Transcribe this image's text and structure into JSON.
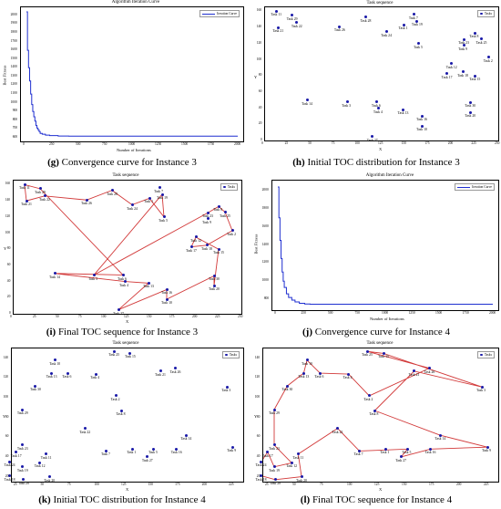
{
  "panels": [
    {
      "id": "g",
      "kind": "curve",
      "title": "Algorithm Iteration Curve",
      "legend": "Iteration Curve",
      "xlabel": "Number of Iterations",
      "ylabel": "Best Fitness",
      "caption_letter": "(g)",
      "caption_text": " Convergence curve for Instance 3",
      "x_ticks": [
        "0",
        "250",
        "500",
        "750",
        "1000",
        "1250",
        "1500",
        "1750",
        "2000"
      ],
      "y_ticks": [
        "600",
        "700",
        "800",
        "900",
        "1000",
        "1100",
        "1200",
        "1300",
        "1400",
        "1500",
        "1600",
        "1700",
        "1800",
        "1900",
        "2000"
      ]
    },
    {
      "id": "h",
      "kind": "scatter",
      "title": "Task sequence",
      "legend": "Tasks",
      "xlabel": "X",
      "ylabel": "Y",
      "caption_letter": "(h)",
      "caption_text": " Initial TOC distribution for Instance 3",
      "x_ticks": [
        "0",
        "25",
        "50",
        "75",
        "100",
        "125",
        "150",
        "175",
        "200",
        "225",
        "250"
      ],
      "y_ticks": [
        "0",
        "20",
        "40",
        "60",
        "80",
        "100",
        "120",
        "140",
        "160"
      ]
    },
    {
      "id": "i",
      "kind": "route",
      "title": "Task sequence",
      "legend": "Tasks",
      "xlabel": "X",
      "ylabel": "Y",
      "caption_letter": "(i)",
      "caption_text": " Final TOC sequence for Instance 3",
      "x_ticks": [
        "0",
        "25",
        "50",
        "75",
        "100",
        "125",
        "150",
        "175",
        "200",
        "225",
        "250"
      ],
      "y_ticks": [
        "0",
        "20",
        "40",
        "60",
        "80",
        "100",
        "120",
        "140",
        "160"
      ]
    },
    {
      "id": "j",
      "kind": "curve",
      "title": "Algorithm Iteration Curve",
      "legend": "Iteration Curve",
      "xlabel": "Number of Iterations",
      "ylabel": "Best Fitness",
      "caption_letter": "(j)",
      "caption_text": " Convergence curve for Instance 4",
      "x_ticks": [
        "0",
        "250",
        "500",
        "750",
        "1000",
        "1250",
        "1500",
        "1750",
        "2000"
      ],
      "y_ticks": [
        "800",
        "1000",
        "1200",
        "1400",
        "1600",
        "1800",
        "2000"
      ]
    },
    {
      "id": "k",
      "kind": "scatter",
      "title": "Task sequence",
      "legend": "Tasks",
      "xlabel": "X",
      "ylabel": "Y",
      "caption_letter": "(k)",
      "caption_text": " Initial TOC distribution for Instance 4",
      "x_ticks": [
        "25",
        "50",
        "75",
        "100",
        "125",
        "150",
        "175",
        "200",
        "225"
      ],
      "y_ticks": [
        "20",
        "40",
        "60",
        "80",
        "100",
        "120",
        "140"
      ]
    },
    {
      "id": "l",
      "kind": "route",
      "title": "Task sequence",
      "legend": "Tasks",
      "xlabel": "X",
      "ylabel": "Y",
      "caption_letter": "(l)",
      "caption_text": " Final TOC sequence for Instance 4",
      "x_ticks": [
        "25",
        "50",
        "75",
        "100",
        "125",
        "150",
        "175",
        "200",
        "225"
      ],
      "y_ticks": [
        "20",
        "40",
        "60",
        "80",
        "100",
        "120",
        "140"
      ]
    }
  ],
  "chart_data": [
    {
      "panel": "g",
      "type": "line",
      "title": "Algorithm Iteration Curve",
      "xlabel": "Number of Iterations",
      "ylabel": "Best Fitness",
      "xlim": [
        0,
        2000
      ],
      "ylim": [
        600,
        2050
      ],
      "series": [
        {
          "name": "Iteration Curve",
          "x": [
            0,
            10,
            20,
            30,
            40,
            50,
            60,
            70,
            80,
            90,
            100,
            110,
            120,
            130,
            150,
            180,
            220,
            300,
            400,
            2000
          ],
          "y": [
            2040,
            1600,
            1400,
            1250,
            1100,
            980,
            900,
            840,
            790,
            740,
            710,
            690,
            670,
            650,
            640,
            630,
            625,
            620,
            618,
            618
          ]
        }
      ]
    },
    {
      "panel": "h",
      "type": "scatter",
      "title": "Task sequence",
      "xlim": [
        0,
        250
      ],
      "ylim": [
        0,
        165
      ],
      "series": [
        {
          "name": "Tasks",
          "points": [
            {
              "label": "Task 1",
              "x": 149,
              "y": 143
            },
            {
              "label": "Task 2",
              "x": 240,
              "y": 103
            },
            {
              "label": "Task 3",
              "x": 88,
              "y": 48
            },
            {
              "label": "Task 4",
              "x": 122,
              "y": 40
            },
            {
              "label": "Task 5",
              "x": 165,
              "y": 120
            },
            {
              "label": "Task 6",
              "x": 120,
              "y": 48
            },
            {
              "label": "Task 7",
              "x": 160,
              "y": 156
            },
            {
              "label": "Task 8",
              "x": 225,
              "y": 133
            },
            {
              "label": "Task 9",
              "x": 213,
              "y": 118
            },
            {
              "label": "Task 10",
              "x": 168,
              "y": 18
            },
            {
              "label": "Task 11",
              "x": 12,
              "y": 160
            },
            {
              "label": "Task 12",
              "x": 200,
              "y": 95
            },
            {
              "label": "Task 13",
              "x": 148,
              "y": 38
            },
            {
              "label": "Task 14",
              "x": 45,
              "y": 50
            },
            {
              "label": "Task 15",
              "x": 225,
              "y": 80
            },
            {
              "label": "Task 16",
              "x": 168,
              "y": 30
            },
            {
              "label": "Task 17",
              "x": 195,
              "y": 83
            },
            {
              "label": "Task 18",
              "x": 212,
              "y": 85
            },
            {
              "label": "Task 19",
              "x": 163,
              "y": 148
            },
            {
              "label": "Task 20",
              "x": 220,
              "y": 35
            },
            {
              "label": "Task 21",
              "x": 14,
              "y": 140
            },
            {
              "label": "Task 22",
              "x": 34,
              "y": 146
            },
            {
              "label": "Task 23",
              "x": 213,
              "y": 125
            },
            {
              "label": "Task 24",
              "x": 130,
              "y": 135
            },
            {
              "label": "Task 25",
              "x": 232,
              "y": 126
            },
            {
              "label": "Task 26",
              "x": 80,
              "y": 141
            },
            {
              "label": "Task 27",
              "x": 115,
              "y": 5
            },
            {
              "label": "Task 28",
              "x": 108,
              "y": 153
            },
            {
              "label": "Task 29",
              "x": 29,
              "y": 155
            },
            {
              "label": "Task 30",
              "x": 220,
              "y": 47
            }
          ]
        }
      ]
    },
    {
      "panel": "i",
      "type": "line",
      "title": "Task sequence",
      "xlim": [
        0,
        250
      ],
      "ylim": [
        0,
        165
      ],
      "route": [
        "Task 11",
        "Task 21",
        "Task 22",
        "Task 26",
        "Task 28",
        "Task 24",
        "Task 1",
        "Task 5",
        "Task 19",
        "Task 3",
        "Task 23",
        "Task 8",
        "Task 25",
        "Task 2",
        "Task 18",
        "Task 17",
        "Task 12",
        "Task 15",
        "Task 20",
        "Task 30",
        "Task 10",
        "Task 16",
        "Task 27",
        "Task 13",
        "Task 4",
        "Task 14",
        "Task 6",
        "Task 29",
        "Task 11"
      ]
    },
    {
      "panel": "j",
      "type": "line",
      "title": "Algorithm Iteration Curve",
      "xlabel": "Number of Iterations",
      "ylabel": "Best Fitness",
      "xlim": [
        0,
        2000
      ],
      "ylim": [
        720,
        2070
      ],
      "series": [
        {
          "name": "Iteration Curve",
          "x": [
            0,
            10,
            20,
            30,
            40,
            50,
            60,
            80,
            100,
            130,
            160,
            200,
            250,
            300,
            2000
          ],
          "y": [
            2040,
            1700,
            1450,
            1250,
            1100,
            1000,
            930,
            860,
            820,
            790,
            770,
            755,
            748,
            745,
            745
          ]
        }
      ]
    },
    {
      "panel": "k",
      "type": "scatter",
      "title": "Task sequence",
      "xlim": [
        20,
        235
      ],
      "ylim": [
        15,
        150
      ],
      "series": [
        {
          "name": "Tasks",
          "points": [
            {
              "label": "Task 1",
              "x": 132,
              "y": 48
            },
            {
              "label": "Task 2",
              "x": 117,
              "y": 102
            },
            {
              "label": "Task 3",
              "x": 220,
              "y": 111
            },
            {
              "label": "Task 4",
              "x": 98,
              "y": 124
            },
            {
              "label": "Task 5",
              "x": 152,
              "y": 48
            },
            {
              "label": "Task 6",
              "x": 72,
              "y": 125
            },
            {
              "label": "Task 7",
              "x": 108,
              "y": 46
            },
            {
              "label": "Task 8",
              "x": 122,
              "y": 87
            },
            {
              "label": "Task 9",
              "x": 225,
              "y": 50
            },
            {
              "label": "Task 10",
              "x": 60,
              "y": 138
            },
            {
              "label": "Task 11",
              "x": 52,
              "y": 43
            },
            {
              "label": "Task 12",
              "x": 46,
              "y": 34
            },
            {
              "label": "Task 13",
              "x": 57,
              "y": 125
            },
            {
              "label": "Task 14",
              "x": 182,
              "y": 62
            },
            {
              "label": "Task 15",
              "x": 130,
              "y": 145
            },
            {
              "label": "Task 16",
              "x": 173,
              "y": 48
            },
            {
              "label": "Task 17",
              "x": 24,
              "y": 45
            },
            {
              "label": "Task 18",
              "x": 18,
              "y": 21
            },
            {
              "label": "Task 19",
              "x": 30,
              "y": 30
            },
            {
              "label": "Task 20",
              "x": 55,
              "y": 20
            },
            {
              "label": "Task 21",
              "x": 158,
              "y": 127
            },
            {
              "label": "Task 22",
              "x": 88,
              "y": 69
            },
            {
              "label": "Task 23",
              "x": 30,
              "y": 52
            },
            {
              "label": "Task 24",
              "x": 18,
              "y": 35
            },
            {
              "label": "Task 25",
              "x": 115,
              "y": 147
            },
            {
              "label": "Task 26",
              "x": 172,
              "y": 130
            },
            {
              "label": "Task 27",
              "x": 146,
              "y": 40
            },
            {
              "label": "Task 28",
              "x": 31,
              "y": 17
            },
            {
              "label": "Task 29",
              "x": 30,
              "y": 88
            },
            {
              "label": "Task 30",
              "x": 42,
              "y": 112
            }
          ]
        }
      ]
    },
    {
      "panel": "l",
      "type": "line",
      "title": "Task sequence",
      "xlim": [
        20,
        235
      ],
      "ylim": [
        15,
        150
      ],
      "route": [
        "Task 10",
        "Task 13",
        "Task 30",
        "Task 29",
        "Task 23",
        "Task 12",
        "Task 19",
        "Task 17",
        "Task 24",
        "Task 18",
        "Task 28",
        "Task 20",
        "Task 11",
        "Task 22",
        "Task 7",
        "Task 5",
        "Task 27",
        "Task 16",
        "Task 9",
        "Task 14",
        "Task 8",
        "Task 21",
        "Task 3",
        "Task 15",
        "Task 25",
        "Task 26",
        "Task 2",
        "Task 4",
        "Task 6",
        "Task 10"
      ]
    }
  ]
}
